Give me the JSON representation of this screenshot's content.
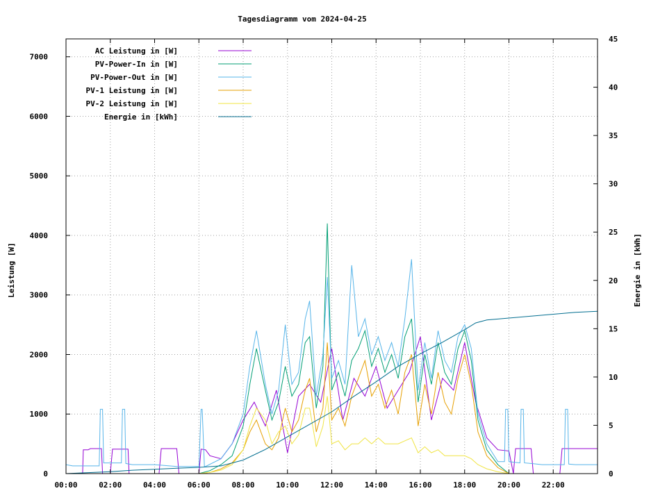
{
  "chart_data": {
    "type": "line",
    "title": "Tagesdiagramm vom 2024-04-25",
    "xlabel": "",
    "ylabel": "Leistung [W]",
    "y2label": "Energie in [kWh]",
    "xlim": [
      0,
      24
    ],
    "ylim": [
      0,
      7300
    ],
    "y2lim": [
      0,
      45
    ],
    "grid": true,
    "legend_position": "top-left",
    "x_ticks": [
      0,
      2,
      4,
      6,
      8,
      10,
      12,
      14,
      16,
      18,
      20,
      22
    ],
    "x_tick_labels": [
      "00:00",
      "02:00",
      "04:00",
      "06:00",
      "08:00",
      "10:00",
      "12:00",
      "14:00",
      "16:00",
      "18:00",
      "20:00",
      "22:00"
    ],
    "y_ticks": [
      0,
      1000,
      2000,
      3000,
      4000,
      5000,
      6000,
      7000
    ],
    "y_tick_labels": [
      "0",
      "1000",
      "2000",
      "3000",
      "4000",
      "5000",
      "6000",
      "7000"
    ],
    "y2_ticks": [
      0,
      5,
      10,
      15,
      20,
      25,
      30,
      35,
      40,
      45
    ],
    "y2_tick_labels": [
      "0",
      "5",
      "10",
      "15",
      "20",
      "25",
      "30",
      "35",
      "40",
      "45"
    ],
    "series": [
      {
        "name": "AC Leistung in [W]",
        "color": "#9400d3",
        "axis": "y",
        "x": [
          0,
          0.75,
          0.78,
          1.0,
          1.1,
          1.6,
          1.65,
          2.0,
          2.1,
          2.8,
          2.85,
          4.2,
          4.3,
          5.0,
          5.1,
          6.0,
          6.1,
          6.3,
          6.5,
          7.0,
          7.5,
          8.0,
          8.5,
          9.0,
          9.5,
          10.0,
          10.5,
          11.0,
          11.5,
          12.0,
          12.5,
          13.0,
          13.5,
          14.0,
          14.5,
          15.0,
          15.5,
          16.0,
          16.5,
          17.0,
          17.5,
          18.0,
          18.5,
          19.0,
          19.5,
          20.0,
          20.2,
          20.3,
          21.0,
          21.1,
          22.3,
          22.4,
          23.0,
          23.1,
          24.0
        ],
        "values": [
          0,
          0,
          400,
          400,
          420,
          420,
          0,
          0,
          410,
          410,
          0,
          0,
          420,
          420,
          0,
          0,
          410,
          400,
          300,
          250,
          500,
          900,
          1200,
          800,
          1400,
          350,
          1300,
          1500,
          1200,
          2100,
          900,
          1600,
          1300,
          1800,
          1100,
          1400,
          1700,
          2300,
          900,
          1600,
          1400,
          2200,
          1200,
          600,
          400,
          380,
          0,
          420,
          420,
          0,
          0,
          420,
          420,
          420,
          420
        ]
      },
      {
        "name": "PV-Power-In in [W]",
        "color": "#009e73",
        "axis": "y",
        "x": [
          0,
          6.0,
          6.5,
          7.0,
          7.5,
          8.0,
          8.3,
          8.6,
          9.0,
          9.3,
          9.6,
          9.9,
          10.2,
          10.5,
          10.8,
          11.0,
          11.3,
          11.6,
          11.8,
          12.0,
          12.3,
          12.6,
          12.9,
          13.2,
          13.5,
          13.8,
          14.1,
          14.4,
          14.7,
          15.0,
          15.3,
          15.6,
          15.9,
          16.2,
          16.5,
          16.8,
          17.1,
          17.4,
          17.7,
          18.0,
          18.3,
          18.6,
          19.0,
          19.5,
          20.0,
          24.0
        ],
        "values": [
          0,
          0,
          50,
          150,
          300,
          800,
          1500,
          2100,
          1400,
          900,
          1200,
          1800,
          1300,
          1500,
          2200,
          2300,
          1100,
          1800,
          4200,
          1400,
          1700,
          1300,
          1900,
          2100,
          2400,
          1800,
          2100,
          1700,
          2000,
          1600,
          2300,
          2600,
          1200,
          2000,
          1500,
          2200,
          1700,
          1500,
          2100,
          2400,
          1900,
          900,
          400,
          150,
          0,
          0
        ]
      },
      {
        "name": "PV-Power-Out in [W]",
        "color": "#56b4e9",
        "axis": "y",
        "x": [
          0,
          0.3,
          1.5,
          1.55,
          1.65,
          1.7,
          2.5,
          2.55,
          2.65,
          2.7,
          3.0,
          4.0,
          5.0,
          6.0,
          6.1,
          6.15,
          6.25,
          6.3,
          7.0,
          7.5,
          8.0,
          8.3,
          8.6,
          9.0,
          9.3,
          9.6,
          9.9,
          10.2,
          10.5,
          10.8,
          11.0,
          11.3,
          11.6,
          11.8,
          12.0,
          12.3,
          12.6,
          12.9,
          13.2,
          13.5,
          13.8,
          14.1,
          14.4,
          14.7,
          15.0,
          15.3,
          15.6,
          15.9,
          16.2,
          16.5,
          16.8,
          17.1,
          17.4,
          17.7,
          18.0,
          18.3,
          18.6,
          19.0,
          19.5,
          19.8,
          19.85,
          19.95,
          20.0,
          20.5,
          20.55,
          20.65,
          20.7,
          21.0,
          21.5,
          22.0,
          22.5,
          22.55,
          22.65,
          22.7,
          23.0,
          24.0
        ],
        "values": [
          150,
          130,
          130,
          1080,
          1080,
          180,
          180,
          1080,
          1080,
          170,
          150,
          150,
          120,
          120,
          1080,
          1080,
          120,
          120,
          250,
          500,
          1000,
          1800,
          2400,
          1500,
          1000,
          1400,
          2500,
          1500,
          1700,
          2600,
          2900,
          1300,
          2000,
          3300,
          1600,
          1900,
          1500,
          3500,
          2300,
          2600,
          2000,
          2300,
          1900,
          2200,
          1800,
          2600,
          3600,
          1400,
          2200,
          1600,
          2400,
          1900,
          1700,
          2300,
          2500,
          2100,
          1000,
          500,
          200,
          200,
          1080,
          1080,
          200,
          180,
          1080,
          1080,
          180,
          170,
          150,
          150,
          150,
          1080,
          1080,
          160,
          150,
          150
        ]
      },
      {
        "name": "PV-1 Leistung in [W]",
        "color": "#e69f00",
        "axis": "y",
        "x": [
          0,
          6.0,
          6.5,
          7.0,
          7.5,
          8.0,
          8.3,
          8.6,
          9.0,
          9.3,
          9.6,
          9.9,
          10.2,
          10.5,
          10.8,
          11.0,
          11.3,
          11.6,
          11.8,
          12.0,
          12.3,
          12.6,
          12.9,
          13.2,
          13.5,
          13.8,
          14.1,
          14.4,
          14.7,
          15.0,
          15.3,
          15.6,
          15.9,
          16.2,
          16.5,
          16.8,
          17.1,
          17.4,
          17.7,
          18.0,
          18.3,
          18.6,
          19.0,
          19.5,
          20.0,
          24.0
        ],
        "values": [
          0,
          0,
          20,
          80,
          180,
          400,
          700,
          900,
          500,
          400,
          600,
          1100,
          700,
          900,
          1400,
          1600,
          700,
          1100,
          2200,
          900,
          1100,
          800,
          1300,
          1600,
          1900,
          1300,
          1500,
          1100,
          1400,
          1000,
          1700,
          2000,
          800,
          1500,
          1000,
          1700,
          1200,
          1000,
          1600,
          2000,
          1500,
          700,
          300,
          100,
          0,
          0
        ]
      },
      {
        "name": "PV-2 Leistung in [W]",
        "color": "#f0e442",
        "axis": "y",
        "x": [
          0,
          6.0,
          6.5,
          7.0,
          7.5,
          8.0,
          8.3,
          8.6,
          9.0,
          9.3,
          9.6,
          9.9,
          10.2,
          10.5,
          10.8,
          11.0,
          11.3,
          11.6,
          11.8,
          12.0,
          12.3,
          12.6,
          12.9,
          13.2,
          13.5,
          13.8,
          14.1,
          14.4,
          14.7,
          15.0,
          15.3,
          15.6,
          15.9,
          16.2,
          16.5,
          16.8,
          17.1,
          17.4,
          17.7,
          18.0,
          18.3,
          18.6,
          19.0,
          19.5,
          20.0,
          24.0
        ],
        "values": [
          0,
          0,
          20,
          60,
          150,
          400,
          800,
          1100,
          900,
          500,
          700,
          800,
          500,
          650,
          1100,
          1100,
          450,
          800,
          1300,
          500,
          550,
          400,
          500,
          500,
          600,
          500,
          600,
          500,
          500,
          500,
          550,
          600,
          350,
          450,
          350,
          400,
          300,
          300,
          300,
          300,
          250,
          150,
          80,
          30,
          0,
          0
        ]
      },
      {
        "name": "Energie in [kWh]",
        "color": "#006d8f",
        "axis": "y2",
        "x": [
          0,
          1,
          2,
          3,
          4,
          5,
          6,
          7,
          8,
          9,
          10,
          11,
          12,
          13,
          14,
          15,
          16,
          17,
          18,
          18.5,
          19,
          20,
          21,
          22,
          23,
          24
        ],
        "values": [
          0,
          0.1,
          0.2,
          0.35,
          0.45,
          0.55,
          0.65,
          0.8,
          1.4,
          2.5,
          3.8,
          5.1,
          6.4,
          8.0,
          9.5,
          11.1,
          12.4,
          13.6,
          14.9,
          15.6,
          15.9,
          16.1,
          16.3,
          16.5,
          16.7,
          16.8
        ]
      }
    ]
  }
}
